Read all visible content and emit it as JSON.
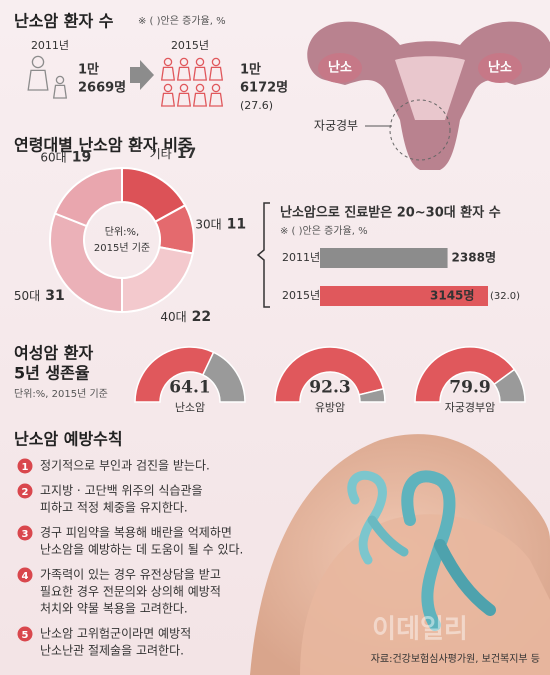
{
  "chart_data": [
    {
      "type": "stat",
      "title": "난소암 환자 수",
      "note": "※ ( )안은 증가율, %",
      "categories": [
        "2011년",
        "2015년"
      ],
      "values": [
        12669,
        16172
      ],
      "value_labels": [
        [
          "1만",
          "2669명"
        ],
        [
          "1만",
          "6172명"
        ]
      ],
      "growth": "(27.6)",
      "colors": [
        "#8c8c8c",
        "#e0585c"
      ]
    },
    {
      "type": "donut",
      "title": "연령대별 난소암 환자 비중",
      "categories": [
        "기타",
        "30대",
        "40대",
        "50대",
        "60대"
      ],
      "values": [
        17,
        11,
        22,
        31,
        19
      ],
      "colors": [
        "#dc5257",
        "#e46a6e",
        "#f3c9cd",
        "#ebb1b8",
        "#e9a6ae"
      ],
      "center_label": [
        "단위:%,",
        "2015년 기준"
      ]
    },
    {
      "type": "bar",
      "title": "난소암으로 진료받은 20~30대 환자 수",
      "note": "※ ( )안은 증가율, %",
      "categories": [
        "2011년",
        "2015년"
      ],
      "values": [
        2388,
        3145
      ],
      "value_labels": [
        "2388명",
        "3145명"
      ],
      "growth": "(32.0)",
      "colors": [
        "#8c8c8c",
        "#e0585c"
      ]
    },
    {
      "type": "gauge",
      "title": [
        "여성암 환자",
        "5년 생존율"
      ],
      "note": "단위:%, 2015년 기준",
      "categories": [
        "난소암",
        "유방암",
        "자궁경부암"
      ],
      "values": [
        64.1,
        92.3,
        79.9
      ],
      "ylim": [
        0,
        100
      ],
      "colors": [
        "#e0585c",
        "#9a9a9a"
      ]
    }
  ],
  "diagram": {
    "labels": [
      "난소",
      "난소",
      "자궁경부"
    ]
  },
  "prevention": {
    "title": "난소암 예방수칙",
    "items": [
      {
        "number": "1",
        "lines": [
          "정기적으로 부인과 검진을 받는다."
        ]
      },
      {
        "number": "2",
        "lines": [
          "고지방 · 고단백 위주의 식습관을",
          "피하고 적정 체중을 유지한다."
        ]
      },
      {
        "number": "3",
        "lines": [
          "경구 피임약을 복용해 배란을 억제하면",
          "난소암을 예방하는 데 도움이 될 수 있다."
        ]
      },
      {
        "number": "4",
        "lines": [
          "가족력이 있는 경우 유전상담을 받고",
          "필요한 경우 전문의와 상의해 예방적",
          "처치와 약물 복용을 고려한다."
        ]
      },
      {
        "number": "5",
        "lines": [
          "난소암 고위험군이라면 예방적",
          "난소난관 절제술을 고려한다."
        ]
      }
    ]
  },
  "source": "자료:건강보험심사평가원, 보건복지부 등",
  "watermark": "이데일리"
}
